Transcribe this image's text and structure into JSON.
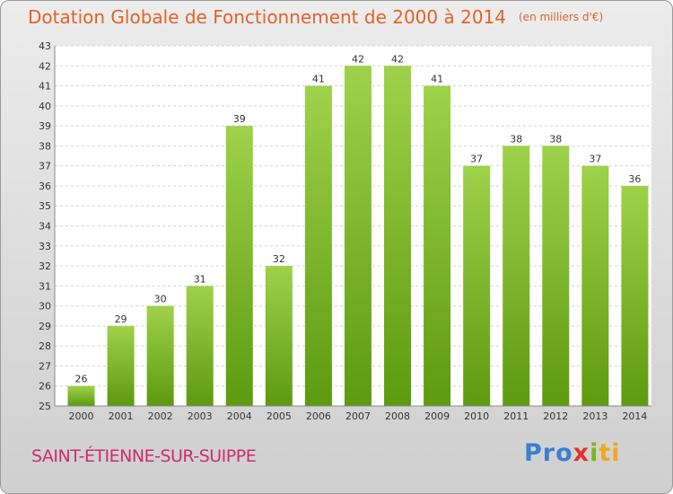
{
  "header": {
    "title": "Dotation Globale de Fonctionnement de 2000 à 2014",
    "unit": "(en milliers d'€)"
  },
  "footer": {
    "town": "SAINT-ÉTIENNE-SUR-SUIPPE",
    "logo": {
      "p1": "Pro",
      "p2": "x",
      "p3": "i",
      "p4": "ti"
    }
  },
  "colors": {
    "bar_light": "#9ed24a",
    "bar_dark": "#5d9a10",
    "title": "#e2632a",
    "town": "#cc2c6b"
  },
  "chart_data": {
    "type": "bar",
    "title": "Dotation Globale de Fonctionnement de 2000 à 2014",
    "subtitle": "(en milliers d'€)",
    "categories": [
      "2000",
      "2001",
      "2002",
      "2003",
      "2004",
      "2005",
      "2006",
      "2007",
      "2008",
      "2009",
      "2010",
      "2011",
      "2012",
      "2013",
      "2014"
    ],
    "values": [
      26,
      29,
      30,
      31,
      39,
      32,
      41,
      42,
      42,
      41,
      37,
      38,
      38,
      37,
      36
    ],
    "ylim": [
      25,
      43
    ],
    "yticks": [
      25,
      26,
      27,
      28,
      29,
      30,
      31,
      32,
      33,
      34,
      35,
      36,
      37,
      38,
      39,
      40,
      41,
      42,
      43
    ],
    "grid": true,
    "xlabel": "",
    "ylabel": ""
  }
}
